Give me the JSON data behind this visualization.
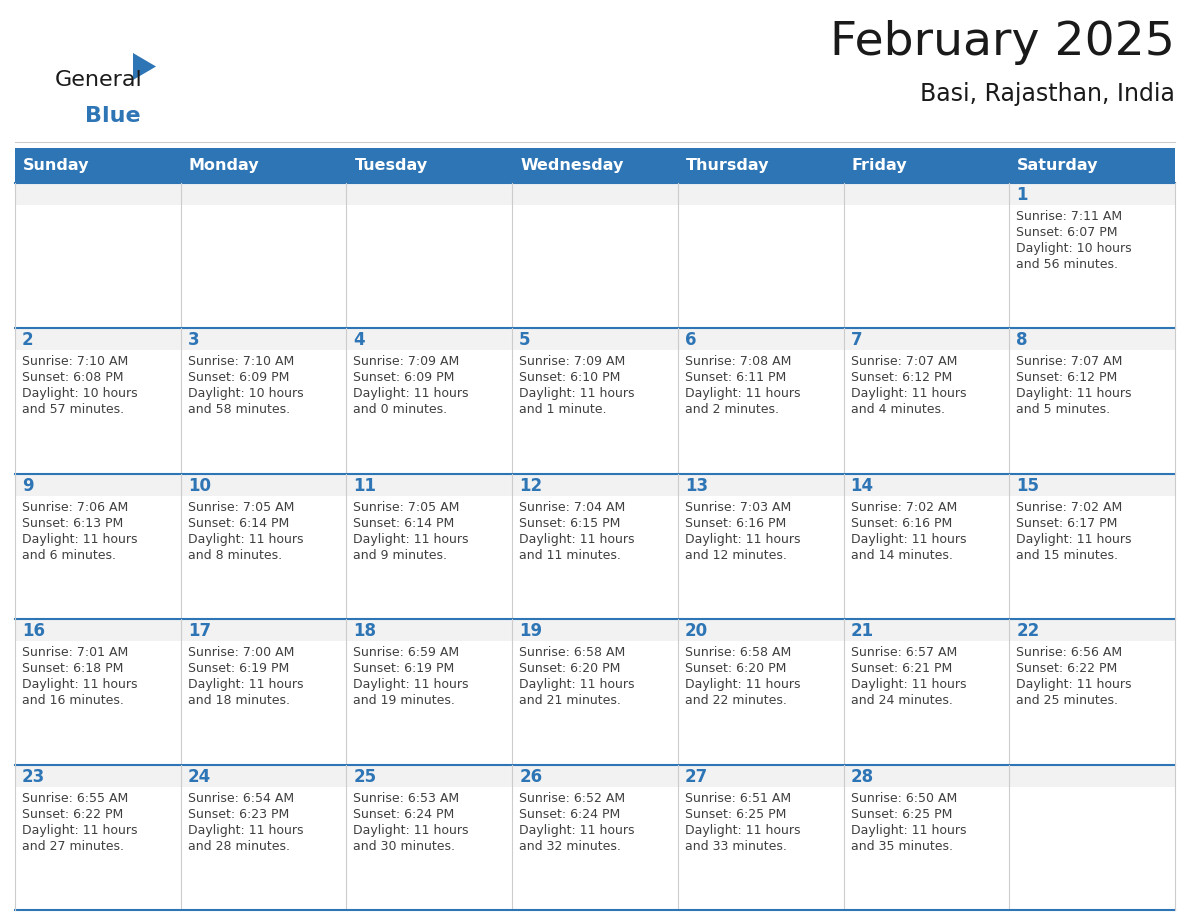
{
  "title": "February 2025",
  "subtitle": "Basi, Rajasthan, India",
  "header_bg": "#2E75B6",
  "header_text_color": "#FFFFFF",
  "day_strip_bg": "#F0F0F0",
  "cell_bg_white": "#FFFFFF",
  "day_number_color": "#2E75B6",
  "info_text_color": "#404040",
  "row_border_color": "#2E75B6",
  "col_border_color": "#CCCCCC",
  "days_of_week": [
    "Sunday",
    "Monday",
    "Tuesday",
    "Wednesday",
    "Thursday",
    "Friday",
    "Saturday"
  ],
  "weeks": [
    [
      {
        "day": "",
        "sunrise": "",
        "sunset": "",
        "daylight": ""
      },
      {
        "day": "",
        "sunrise": "",
        "sunset": "",
        "daylight": ""
      },
      {
        "day": "",
        "sunrise": "",
        "sunset": "",
        "daylight": ""
      },
      {
        "day": "",
        "sunrise": "",
        "sunset": "",
        "daylight": ""
      },
      {
        "day": "",
        "sunrise": "",
        "sunset": "",
        "daylight": ""
      },
      {
        "day": "",
        "sunrise": "",
        "sunset": "",
        "daylight": ""
      },
      {
        "day": "1",
        "sunrise": "7:11 AM",
        "sunset": "6:07 PM",
        "daylight_line1": "Daylight: 10 hours",
        "daylight_line2": "and 56 minutes."
      }
    ],
    [
      {
        "day": "2",
        "sunrise": "7:10 AM",
        "sunset": "6:08 PM",
        "daylight_line1": "Daylight: 10 hours",
        "daylight_line2": "and 57 minutes."
      },
      {
        "day": "3",
        "sunrise": "7:10 AM",
        "sunset": "6:09 PM",
        "daylight_line1": "Daylight: 10 hours",
        "daylight_line2": "and 58 minutes."
      },
      {
        "day": "4",
        "sunrise": "7:09 AM",
        "sunset": "6:09 PM",
        "daylight_line1": "Daylight: 11 hours",
        "daylight_line2": "and 0 minutes."
      },
      {
        "day": "5",
        "sunrise": "7:09 AM",
        "sunset": "6:10 PM",
        "daylight_line1": "Daylight: 11 hours",
        "daylight_line2": "and 1 minute."
      },
      {
        "day": "6",
        "sunrise": "7:08 AM",
        "sunset": "6:11 PM",
        "daylight_line1": "Daylight: 11 hours",
        "daylight_line2": "and 2 minutes."
      },
      {
        "day": "7",
        "sunrise": "7:07 AM",
        "sunset": "6:12 PM",
        "daylight_line1": "Daylight: 11 hours",
        "daylight_line2": "and 4 minutes."
      },
      {
        "day": "8",
        "sunrise": "7:07 AM",
        "sunset": "6:12 PM",
        "daylight_line1": "Daylight: 11 hours",
        "daylight_line2": "and 5 minutes."
      }
    ],
    [
      {
        "day": "9",
        "sunrise": "7:06 AM",
        "sunset": "6:13 PM",
        "daylight_line1": "Daylight: 11 hours",
        "daylight_line2": "and 6 minutes."
      },
      {
        "day": "10",
        "sunrise": "7:05 AM",
        "sunset": "6:14 PM",
        "daylight_line1": "Daylight: 11 hours",
        "daylight_line2": "and 8 minutes."
      },
      {
        "day": "11",
        "sunrise": "7:05 AM",
        "sunset": "6:14 PM",
        "daylight_line1": "Daylight: 11 hours",
        "daylight_line2": "and 9 minutes."
      },
      {
        "day": "12",
        "sunrise": "7:04 AM",
        "sunset": "6:15 PM",
        "daylight_line1": "Daylight: 11 hours",
        "daylight_line2": "and 11 minutes."
      },
      {
        "day": "13",
        "sunrise": "7:03 AM",
        "sunset": "6:16 PM",
        "daylight_line1": "Daylight: 11 hours",
        "daylight_line2": "and 12 minutes."
      },
      {
        "day": "14",
        "sunrise": "7:02 AM",
        "sunset": "6:16 PM",
        "daylight_line1": "Daylight: 11 hours",
        "daylight_line2": "and 14 minutes."
      },
      {
        "day": "15",
        "sunrise": "7:02 AM",
        "sunset": "6:17 PM",
        "daylight_line1": "Daylight: 11 hours",
        "daylight_line2": "and 15 minutes."
      }
    ],
    [
      {
        "day": "16",
        "sunrise": "7:01 AM",
        "sunset": "6:18 PM",
        "daylight_line1": "Daylight: 11 hours",
        "daylight_line2": "and 16 minutes."
      },
      {
        "day": "17",
        "sunrise": "7:00 AM",
        "sunset": "6:19 PM",
        "daylight_line1": "Daylight: 11 hours",
        "daylight_line2": "and 18 minutes."
      },
      {
        "day": "18",
        "sunrise": "6:59 AM",
        "sunset": "6:19 PM",
        "daylight_line1": "Daylight: 11 hours",
        "daylight_line2": "and 19 minutes."
      },
      {
        "day": "19",
        "sunrise": "6:58 AM",
        "sunset": "6:20 PM",
        "daylight_line1": "Daylight: 11 hours",
        "daylight_line2": "and 21 minutes."
      },
      {
        "day": "20",
        "sunrise": "6:58 AM",
        "sunset": "6:20 PM",
        "daylight_line1": "Daylight: 11 hours",
        "daylight_line2": "and 22 minutes."
      },
      {
        "day": "21",
        "sunrise": "6:57 AM",
        "sunset": "6:21 PM",
        "daylight_line1": "Daylight: 11 hours",
        "daylight_line2": "and 24 minutes."
      },
      {
        "day": "22",
        "sunrise": "6:56 AM",
        "sunset": "6:22 PM",
        "daylight_line1": "Daylight: 11 hours",
        "daylight_line2": "and 25 minutes."
      }
    ],
    [
      {
        "day": "23",
        "sunrise": "6:55 AM",
        "sunset": "6:22 PM",
        "daylight_line1": "Daylight: 11 hours",
        "daylight_line2": "and 27 minutes."
      },
      {
        "day": "24",
        "sunrise": "6:54 AM",
        "sunset": "6:23 PM",
        "daylight_line1": "Daylight: 11 hours",
        "daylight_line2": "and 28 minutes."
      },
      {
        "day": "25",
        "sunrise": "6:53 AM",
        "sunset": "6:24 PM",
        "daylight_line1": "Daylight: 11 hours",
        "daylight_line2": "and 30 minutes."
      },
      {
        "day": "26",
        "sunrise": "6:52 AM",
        "sunset": "6:24 PM",
        "daylight_line1": "Daylight: 11 hours",
        "daylight_line2": "and 32 minutes."
      },
      {
        "day": "27",
        "sunrise": "6:51 AM",
        "sunset": "6:25 PM",
        "daylight_line1": "Daylight: 11 hours",
        "daylight_line2": "and 33 minutes."
      },
      {
        "day": "28",
        "sunrise": "6:50 AM",
        "sunset": "6:25 PM",
        "daylight_line1": "Daylight: 11 hours",
        "daylight_line2": "and 35 minutes."
      },
      {
        "day": "",
        "sunrise": "",
        "sunset": "",
        "daylight_line1": "",
        "daylight_line2": ""
      }
    ]
  ]
}
